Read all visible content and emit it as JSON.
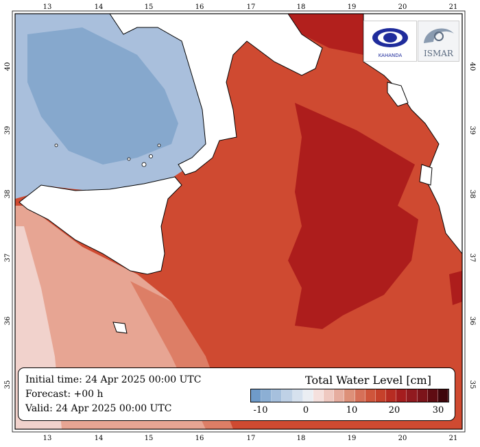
{
  "map": {
    "longitude_ticks": [
      "13",
      "14",
      "15",
      "16",
      "17",
      "18",
      "19",
      "20",
      "21"
    ],
    "latitude_ticks": [
      "40",
      "39",
      "38",
      "37",
      "36",
      "35"
    ],
    "colors": {
      "cold_blue": "#86a8cd",
      "light_blue": "#a9bfdc",
      "pale_pink": "#f1d3cf",
      "light_red": "#e8a08f",
      "medium_red": "#d9644a",
      "red": "#c9442c",
      "deep_red": "#ad1d1c",
      "land": "#ffffff",
      "coast": "#000000"
    }
  },
  "info": {
    "initial": "Initial time: 24 Apr 2025 00:00 UTC",
    "forecast": "Forecast: +00 h",
    "valid": "Valid: 24 Apr 2025 00:00 UTC"
  },
  "legend": {
    "title": "Total Water Level [cm]",
    "ticks": [
      "-10",
      "0",
      "10",
      "20",
      "30"
    ],
    "colors": [
      "#6f9bc9",
      "#8cafd4",
      "#a6c0dd",
      "#bfd1e6",
      "#d6e1ee",
      "#ebeef3",
      "#f5e0dd",
      "#efc9c1",
      "#e6ad9f",
      "#dd9079",
      "#d67058",
      "#cf553b",
      "#c6412b",
      "#b72c22",
      "#a51d1e",
      "#911a1f",
      "#7c141a",
      "#5f0c12",
      "#3e060b"
    ]
  },
  "logos": {
    "left_text": "KAHANDA",
    "right_text": "ISMAR"
  }
}
